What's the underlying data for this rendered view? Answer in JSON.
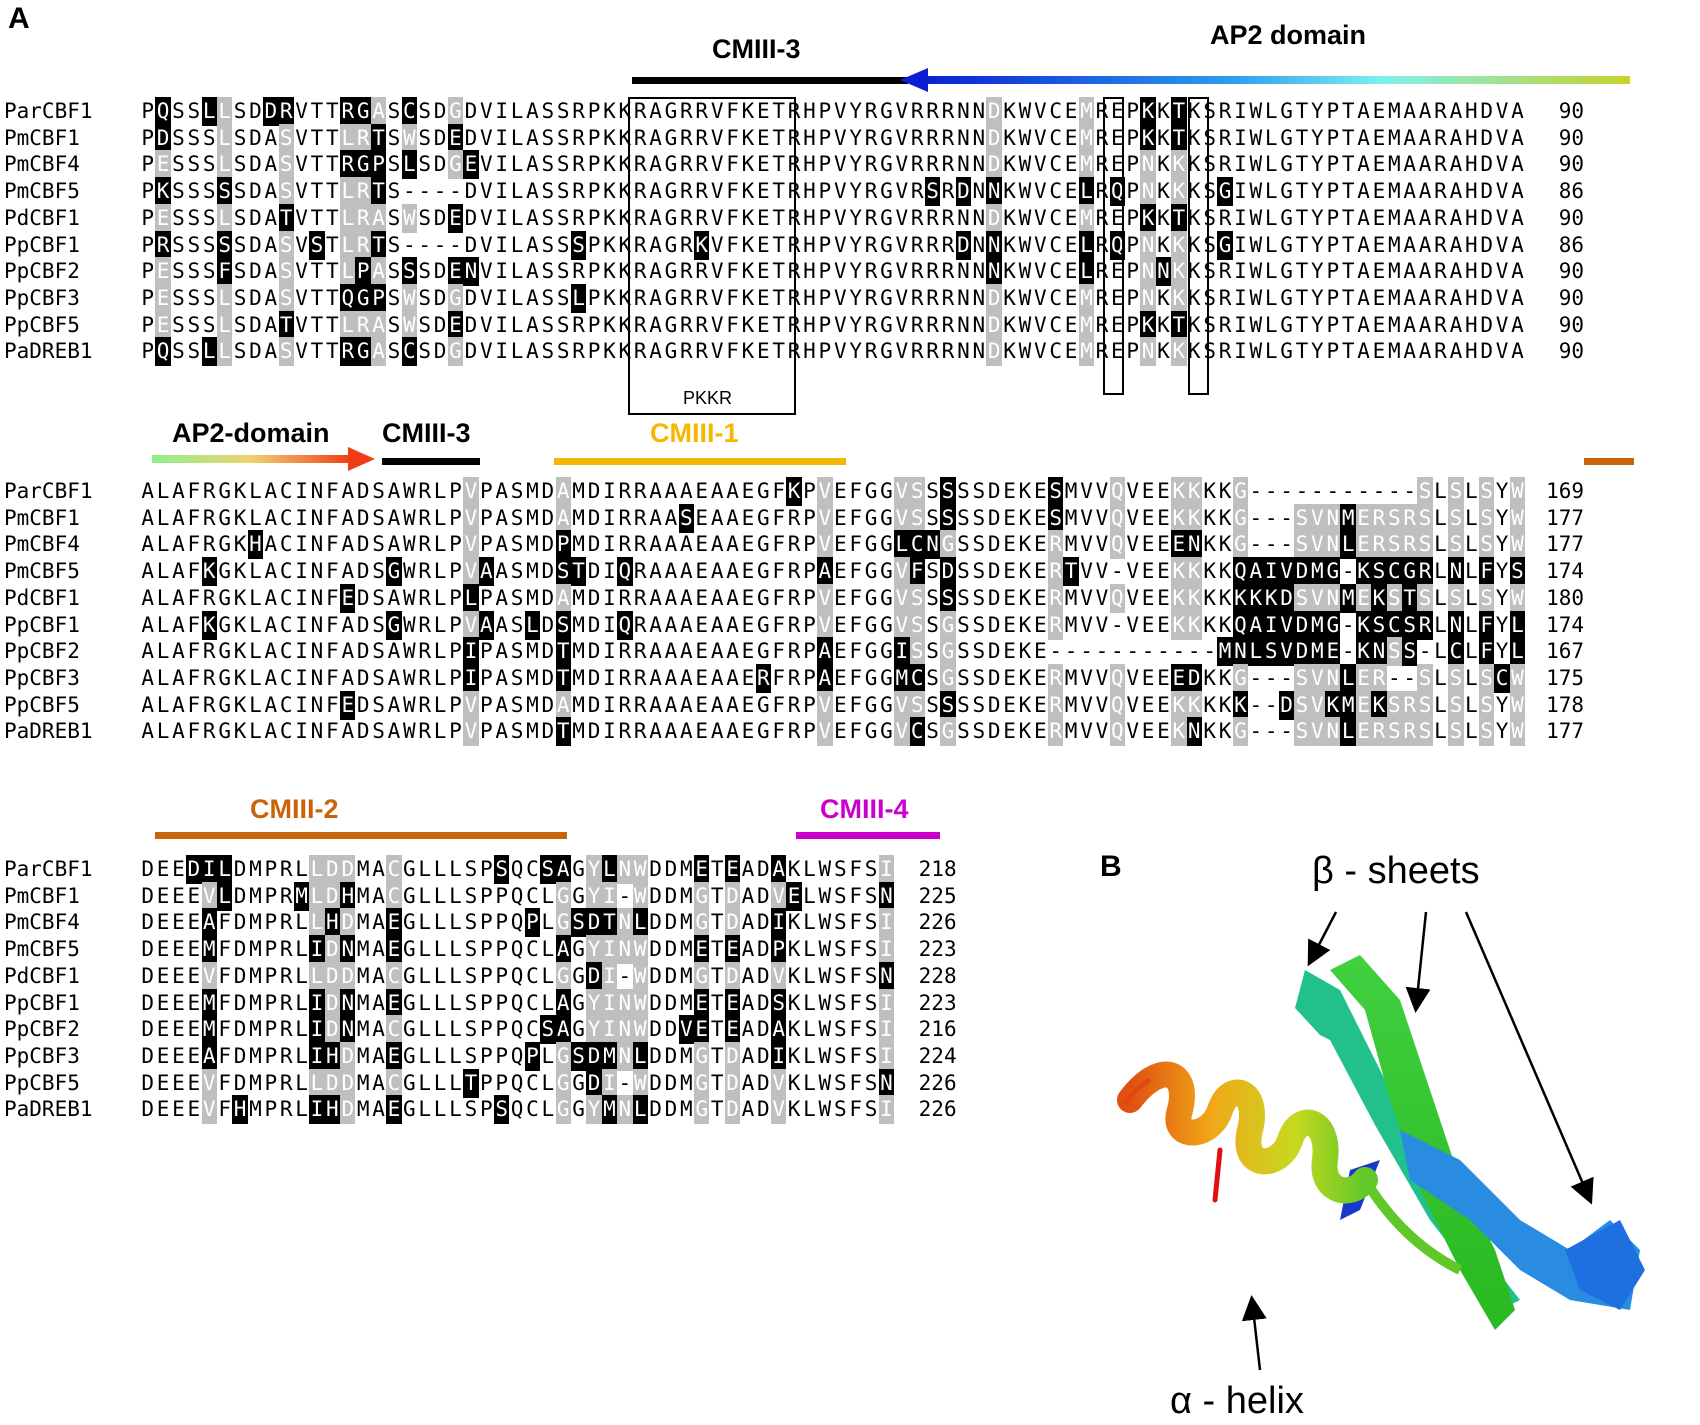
{
  "panel_a_label": "A",
  "panel_b_label": "B",
  "blocks": [
    {
      "annotations": [
        {
          "text": "CMIII-3",
          "color": "#000000"
        },
        {
          "text": "AP2 domain",
          "color": "#000000"
        }
      ],
      "box_label": "PKKR",
      "rows": [
        {
          "name": "ParCBF1",
          "seq": "PQSSLLSDDRVTTRGASCSDGDVILASSRPKKRAGRRVFKETRHPVYRGVRRRNNDKWVCEMREPKKTKSRIWLGTYPTAEMAARAHDVA",
          "end": "90"
        },
        {
          "name": "PmCBF1",
          "seq": "PDSSSLSDASVTTLRTSWSDEDVILASSRPKKRAGRRVFKETRHPVYRGVRRRNNDKWVCEMREPKKTKSRIWLGTYPTAEMAARAHDVA",
          "end": "90"
        },
        {
          "name": "PmCBF4",
          "seq": "PESSSLSDASVTTRGPSLSDGEVILASSRPKKRAGRRVFKETRHPVYRGVRRRNNDKWVCEMREPNKKKSRIWLGTYPTAEMAARAHDVA",
          "end": "90"
        },
        {
          "name": "PmCBF5",
          "seq": "PKSSSSSDASVTTLRTS----DVILASSRPKKRAGRRVFKETRHPVYRGVRSRDNNKWVCELRQPNKKKSGIWLGTYPTAEMAARAHDVA",
          "end": "86"
        },
        {
          "name": "PdCBF1",
          "seq": "PESSSLSDATVTTLRASWSDEDVILASSRPKKRAGRRVFKETRHPVYRGVRRRNNDKWVCEMREPKKTKSRIWLGTYPTAEMAARAHDVA",
          "end": "90"
        },
        {
          "name": "PpCBF1",
          "seq": "PRSSSSSDASVSTLRTS----DVILASSSPKKRAGRKVFKETRHPVYRGVRRRDNNKWVCELRQPNKKKSGIWLGTYPTAEMAARAHDVA",
          "end": "86"
        },
        {
          "name": "PpCBF2",
          "seq": "PESSSFSDASVTTLPASSSDENVILASSRPKKRAGRRVFKETRHPVYRGVRRRNNNKWVCELREPNNKKSRIWLGTYPTAEMAARAHDVA",
          "end": "90"
        },
        {
          "name": "PpCBF3",
          "seq": "PESSSLSDASVTTQGPSWSDGDVILASSLPKKRAGRRVFKETRHPVYRGVRRRNNDKWVCEMREPNKKKSRIWLGTYPTAEMAARAHDVA",
          "end": "90"
        },
        {
          "name": "PpCBF5",
          "seq": "PESSSLSDATVTTLRASWSDEDVILASSRPKKRAGRRVFKETRHPVYRGVRRRNNDKWVCEMREPKKTKSRIWLGTYPTAEMAARAHDVA",
          "end": "90"
        },
        {
          "name": "PaDREB1",
          "seq": "PQSSLLSDASVTTRGASCSDGDVILASSRPKKRAGRRVFKETRHPVYRGVRRRNNDKWVCEMREPNKKKSRIWLGTYPTAEMAARAHDVA",
          "end": "90"
        }
      ]
    },
    {
      "annotations": [
        {
          "text": "AP2-domain",
          "color": "#000000"
        },
        {
          "text": "CMIII-3",
          "color": "#000000"
        },
        {
          "text": "CMIII-1",
          "color": "#f5b800"
        }
      ],
      "rows": [
        {
          "name": "ParCBF1",
          "seq": "ALAFRGKLACINFADSAWRLPVPASMDAMDIRRAAAEAAEGFKPVEFGGVSSSSSDEKESMVVQVEEKKKKG-----------SLSLSYW",
          "end": "169"
        },
        {
          "name": "PmCBF1",
          "seq": "ALAFRGKLACINFADSAWRLPVPASMDAMDIRRAASEAAEGFRPVEFGGVSSSSSDEKESMVVQVEEKKKKG---SVNMERSRSLSLSYW",
          "end": "177"
        },
        {
          "name": "PmCBF4",
          "seq": "ALAFRGKHACINFADSAWRLPVPASMDPMDIRRAAAEAAEGFRPVEFGGLCNGSSDEKERMVVQVEEENKKG---SVNLERSRSLSLSYW",
          "end": "177"
        },
        {
          "name": "PmCBF5",
          "seq": "ALAFKGKLACINFADSGWRLPVAASMDSTDIQRAAAEAAEGFRPAEFGGVFSDSSDEKERTVV-VEEKKKKQAIVDMG-KSCGRLNLFYS",
          "end": "174"
        },
        {
          "name": "PdCBF1",
          "seq": "ALAFRGKLACINFEDSAWRLPLPASMDAMDIRRAAAEAAEGFRPVEFGGVSSSSSDEKERMVVQVEEKKKKKKKDSVNMEKSTSLSLSYW",
          "end": "180"
        },
        {
          "name": "PpCBF1",
          "seq": "ALAFKGKLACINFADSGWRLPVAASLDSMDIQRAAAEAAEGFRPVEFGGVSSGSSDEKERMVV-VEEKKKKQAIVDMG-KSCSRLNLFYL",
          "end": "174"
        },
        {
          "name": "PpCBF2",
          "seq": "ALAFRGKLACINFADSAWRLPIPASMDTMDIRRAAAEAAEGFRPAEFGGISSGSSDEKE-----------MNLSVDME-KNSS-LCLFYL",
          "end": "167"
        },
        {
          "name": "PpCBF3",
          "seq": "ALAFRGKLACINFADSAWRLPIPASMDTMDIRRAAAEAAERFRPAEFGGMCSGSSDEKERMVVQVEEEDKKG---SVNLER--SLSLSCW",
          "end": "175"
        },
        {
          "name": "PpCBF5",
          "seq": "ALAFRGKLACINFEDSAWRLPVPASMDAMDIRRAAAEAAEGFRPVEFGGVSSSSSDEKERMVVQVEEKKKKK--DSVKMEKSRSLSLSYW",
          "end": "178"
        },
        {
          "name": "PaDREB1",
          "seq": "ALAFRGKLACINFADSAWRLPVPASMDTMDIRRAAAEAAEGFRPVEFGGVCSGSSDEKERMVVQVEEKNKKG---SVNLERSRSLSLSYW",
          "end": "177"
        }
      ]
    },
    {
      "annotations": [
        {
          "text": "CMIII-2",
          "color": "#c8640a"
        },
        {
          "text": "CMIII-4",
          "color": "#cc00cc"
        }
      ],
      "rows": [
        {
          "name": "ParCBF1",
          "seq": "DEEDILDMPRLLDDMACGLLLSPSQCSAGYLNWDDMETEADAKLWSFSI",
          "end": "218"
        },
        {
          "name": "PmCBF1",
          "seq": "DEEEVLDMPRMLDHMACGLLLSPPQCLGGYI-WDDMGTDADVELWSFSN",
          "end": "225"
        },
        {
          "name": "PmCBF4",
          "seq": "DEEEAFDMPRLLHDMAEGLLLSPPQPLGSDTNLDDMGTDADIKLWSFSI",
          "end": "226"
        },
        {
          "name": "PmCBF5",
          "seq": "DEEEMFDMPRLIDNMAEGLLLSPPQCLAGYINWDDMETEADPKLWSFSI",
          "end": "223"
        },
        {
          "name": "PdCBF1",
          "seq": "DEEEVFDMPRLLDDMACGLLLSPPQCLGGDI-WDDMGTDADVKLWSFSN",
          "end": "228"
        },
        {
          "name": "PpCBF1",
          "seq": "DEEEMFDMPRLIDNMAEGLLLSPPQCLAGYINWDDMETEADSKLWSFSI",
          "end": "223"
        },
        {
          "name": "PpCBF2",
          "seq": "DEEEMFDMPRLIDNMACGLLLSPPQCSAGYINWDDVETEADAKLWSFSI",
          "end": "216"
        },
        {
          "name": "PpCBF3",
          "seq": "DEEEAFDMPRLIHDMAEGLLLSPPQPLGSDMNLDDMGTDADIKLWSFSI",
          "end": "224"
        },
        {
          "name": "PpCBF5",
          "seq": "DEEEVFDMPRLLDDMACGLLLTPPQCLGGDI-WDDMGTDADVKLWSFSN",
          "end": "226"
        },
        {
          "name": "PaDREB1",
          "seq": "DEEEVFHMPRLIHDMAEGLLLSPSQCLGGYMNLDDMGTDADVKLWSFSI",
          "end": "226"
        }
      ]
    }
  ],
  "structure": {
    "beta_label": "β - sheets",
    "alpha_label": "α - helix"
  },
  "colors": {
    "black": "#000000",
    "gray": "#bfbfbf",
    "cmiii1": "#f5b800",
    "cmiii2": "#c8640a",
    "cmiii4": "#cc00cc"
  }
}
